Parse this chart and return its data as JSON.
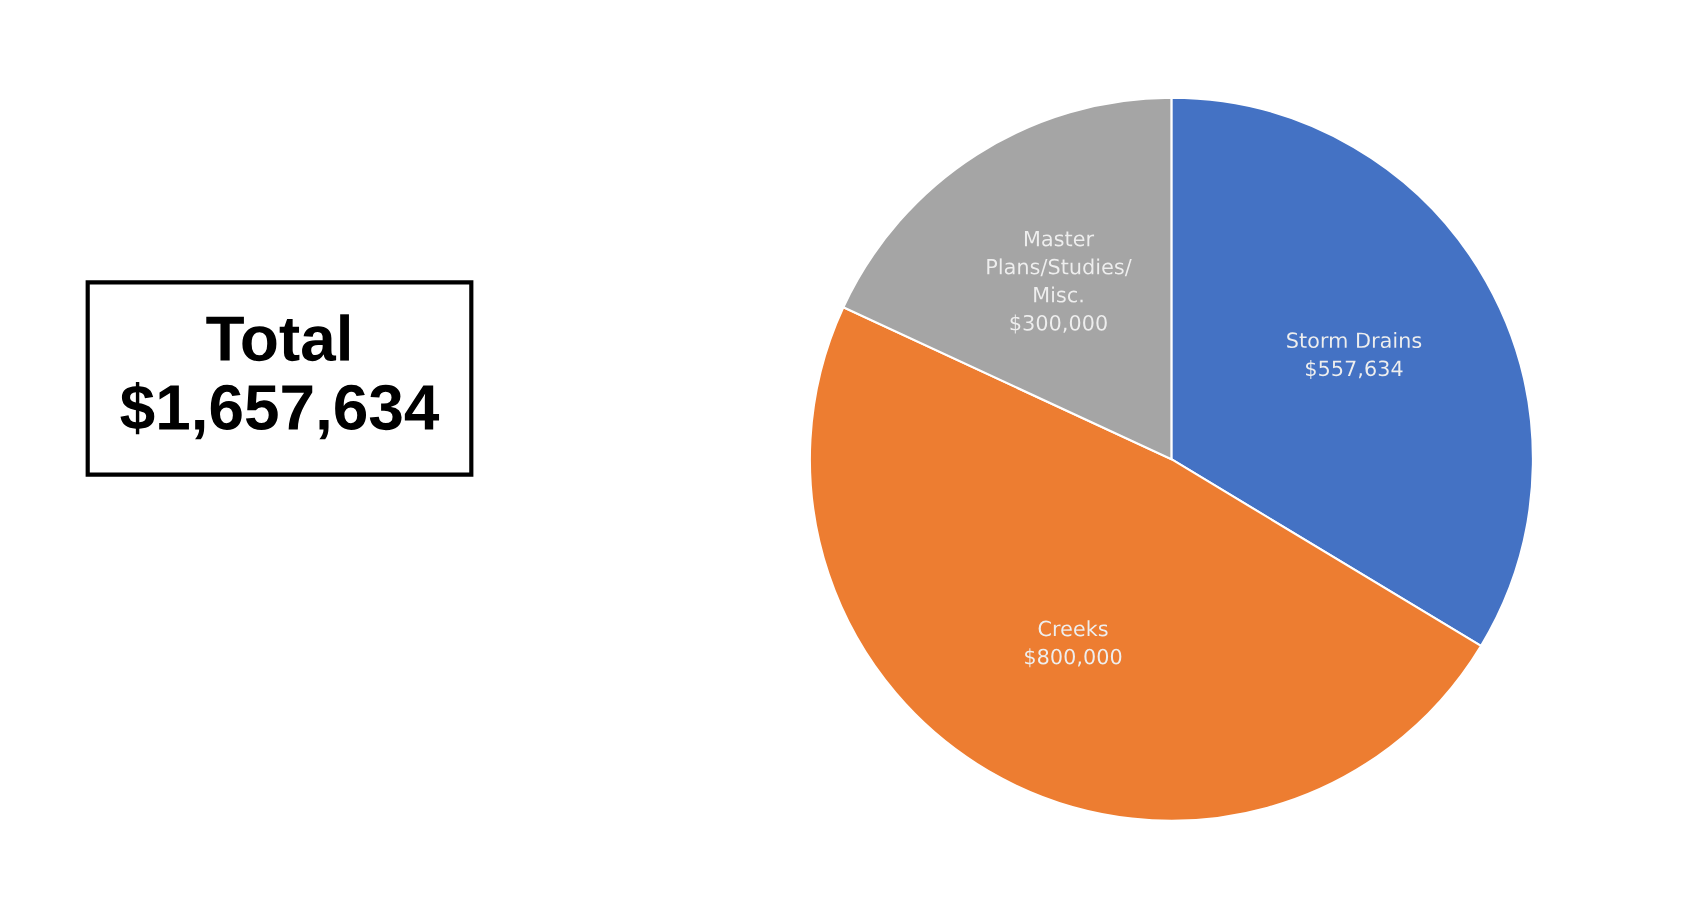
{
  "chart_data": {
    "type": "pie",
    "categories": [
      "Storm Drains",
      "Creeks",
      "Master Plans/Studies/ Misc."
    ],
    "values": [
      557634,
      800000,
      300000
    ],
    "colors": [
      "#4472c4",
      "#ed7d31",
      "#a5a5a5"
    ],
    "value_labels": [
      "$557,634",
      "$800,000",
      "$300,000"
    ],
    "annotations": [
      "Total\n$1,657,634"
    ],
    "legend": false
  }
}
